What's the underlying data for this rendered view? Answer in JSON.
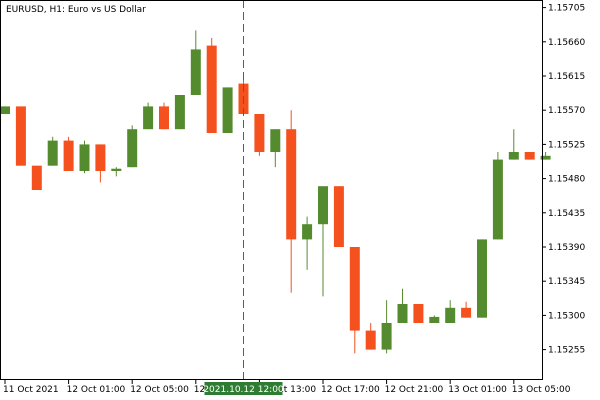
{
  "chart_data": {
    "type": "candlestick",
    "title": "EURUSD, H1:  Euro vs US Dollar",
    "y_tick_labels": [
      "1.15705",
      "1.15660",
      "1.15615",
      "1.15570",
      "1.15525",
      "1.15480",
      "1.15435",
      "1.15390",
      "1.15345",
      "1.15300",
      "1.15255"
    ],
    "y_ticks": [
      1.15705,
      1.1566,
      1.15615,
      1.1557,
      1.15525,
      1.1548,
      1.15435,
      1.1539,
      1.15345,
      1.153,
      1.15255
    ],
    "ylim": [
      1.15215,
      1.15715
    ],
    "x_tick_labels": [
      "11 Oct 2021",
      "12 Oct 01:00",
      "12 Oct 05:00",
      "12 Oct 09:00",
      "12 Oct 13:00",
      "12 Oct 17:00",
      "12 Oct 21:00",
      "13 Oct 01:00",
      "13 Oct 05:00"
    ],
    "x_tick_bars": [
      0,
      4,
      8,
      12,
      16,
      20,
      24,
      28,
      32
    ],
    "crosshair": {
      "bar": 15,
      "label": "2021.10.12 12:00"
    },
    "candles": [
      {
        "o": 1.15565,
        "h": 1.15575,
        "l": 1.15565,
        "c": 1.15575
      },
      {
        "o": 1.15575,
        "h": 1.15575,
        "l": 1.15497,
        "c": 1.15497
      },
      {
        "o": 1.15497,
        "h": 1.15497,
        "l": 1.15465,
        "c": 1.15465
      },
      {
        "o": 1.15497,
        "h": 1.15535,
        "l": 1.15497,
        "c": 1.1553
      },
      {
        "o": 1.1553,
        "h": 1.15535,
        "l": 1.1549,
        "c": 1.1549
      },
      {
        "o": 1.1549,
        "h": 1.1553,
        "l": 1.15487,
        "c": 1.15525
      },
      {
        "o": 1.15525,
        "h": 1.15525,
        "l": 1.15475,
        "c": 1.1549
      },
      {
        "o": 1.1549,
        "h": 1.15495,
        "l": 1.15483,
        "c": 1.15493
      },
      {
        "o": 1.15495,
        "h": 1.1555,
        "l": 1.15495,
        "c": 1.15545
      },
      {
        "o": 1.15545,
        "h": 1.1558,
        "l": 1.15545,
        "c": 1.15575
      },
      {
        "o": 1.15575,
        "h": 1.1558,
        "l": 1.15545,
        "c": 1.15545
      },
      {
        "o": 1.15545,
        "h": 1.1559,
        "l": 1.15545,
        "c": 1.1559
      },
      {
        "o": 1.1559,
        "h": 1.15675,
        "l": 1.1559,
        "c": 1.1565
      },
      {
        "o": 1.15655,
        "h": 1.15665,
        "l": 1.1554,
        "c": 1.1554
      },
      {
        "o": 1.1554,
        "h": 1.156,
        "l": 1.1554,
        "c": 1.156
      },
      {
        "o": 1.15605,
        "h": 1.15615,
        "l": 1.15565,
        "c": 1.15565
      },
      {
        "o": 1.15565,
        "h": 1.15565,
        "l": 1.1551,
        "c": 1.15515
      },
      {
        "o": 1.15515,
        "h": 1.15545,
        "l": 1.15495,
        "c": 1.15545
      },
      {
        "o": 1.15545,
        "h": 1.1557,
        "l": 1.1533,
        "c": 1.154
      },
      {
        "o": 1.154,
        "h": 1.1543,
        "l": 1.1536,
        "c": 1.1542
      },
      {
        "o": 1.1542,
        "h": 1.1547,
        "l": 1.15325,
        "c": 1.1547
      },
      {
        "o": 1.1547,
        "h": 1.1547,
        "l": 1.1539,
        "c": 1.1539
      },
      {
        "o": 1.1539,
        "h": 1.1539,
        "l": 1.1525,
        "c": 1.1528
      },
      {
        "o": 1.1528,
        "h": 1.1529,
        "l": 1.15255,
        "c": 1.15255
      },
      {
        "o": 1.15255,
        "h": 1.1532,
        "l": 1.1525,
        "c": 1.1529
      },
      {
        "o": 1.1529,
        "h": 1.15335,
        "l": 1.1529,
        "c": 1.15315
      },
      {
        "o": 1.15315,
        "h": 1.15315,
        "l": 1.1529,
        "c": 1.1529
      },
      {
        "o": 1.1529,
        "h": 1.153,
        "l": 1.1529,
        "c": 1.15298
      },
      {
        "o": 1.1529,
        "h": 1.1532,
        "l": 1.1529,
        "c": 1.1531
      },
      {
        "o": 1.1531,
        "h": 1.15318,
        "l": 1.15297,
        "c": 1.15297
      },
      {
        "o": 1.15297,
        "h": 1.154,
        "l": 1.15297,
        "c": 1.154
      },
      {
        "o": 1.154,
        "h": 1.15515,
        "l": 1.154,
        "c": 1.15505
      },
      {
        "o": 1.15505,
        "h": 1.15545,
        "l": 1.15505,
        "c": 1.15515
      },
      {
        "o": 1.15515,
        "h": 1.15515,
        "l": 1.15505,
        "c": 1.15505
      },
      {
        "o": 1.15505,
        "h": 1.15515,
        "l": 1.15505,
        "c": 1.1551
      }
    ],
    "colors": {
      "bull": "#558b2f",
      "bear": "#f4511e",
      "axis": "#000000",
      "crosshair": "#2e7d32",
      "crosshair_label_bg": "#2e7d32",
      "crosshair_label_text": "#ffffff"
    }
  }
}
